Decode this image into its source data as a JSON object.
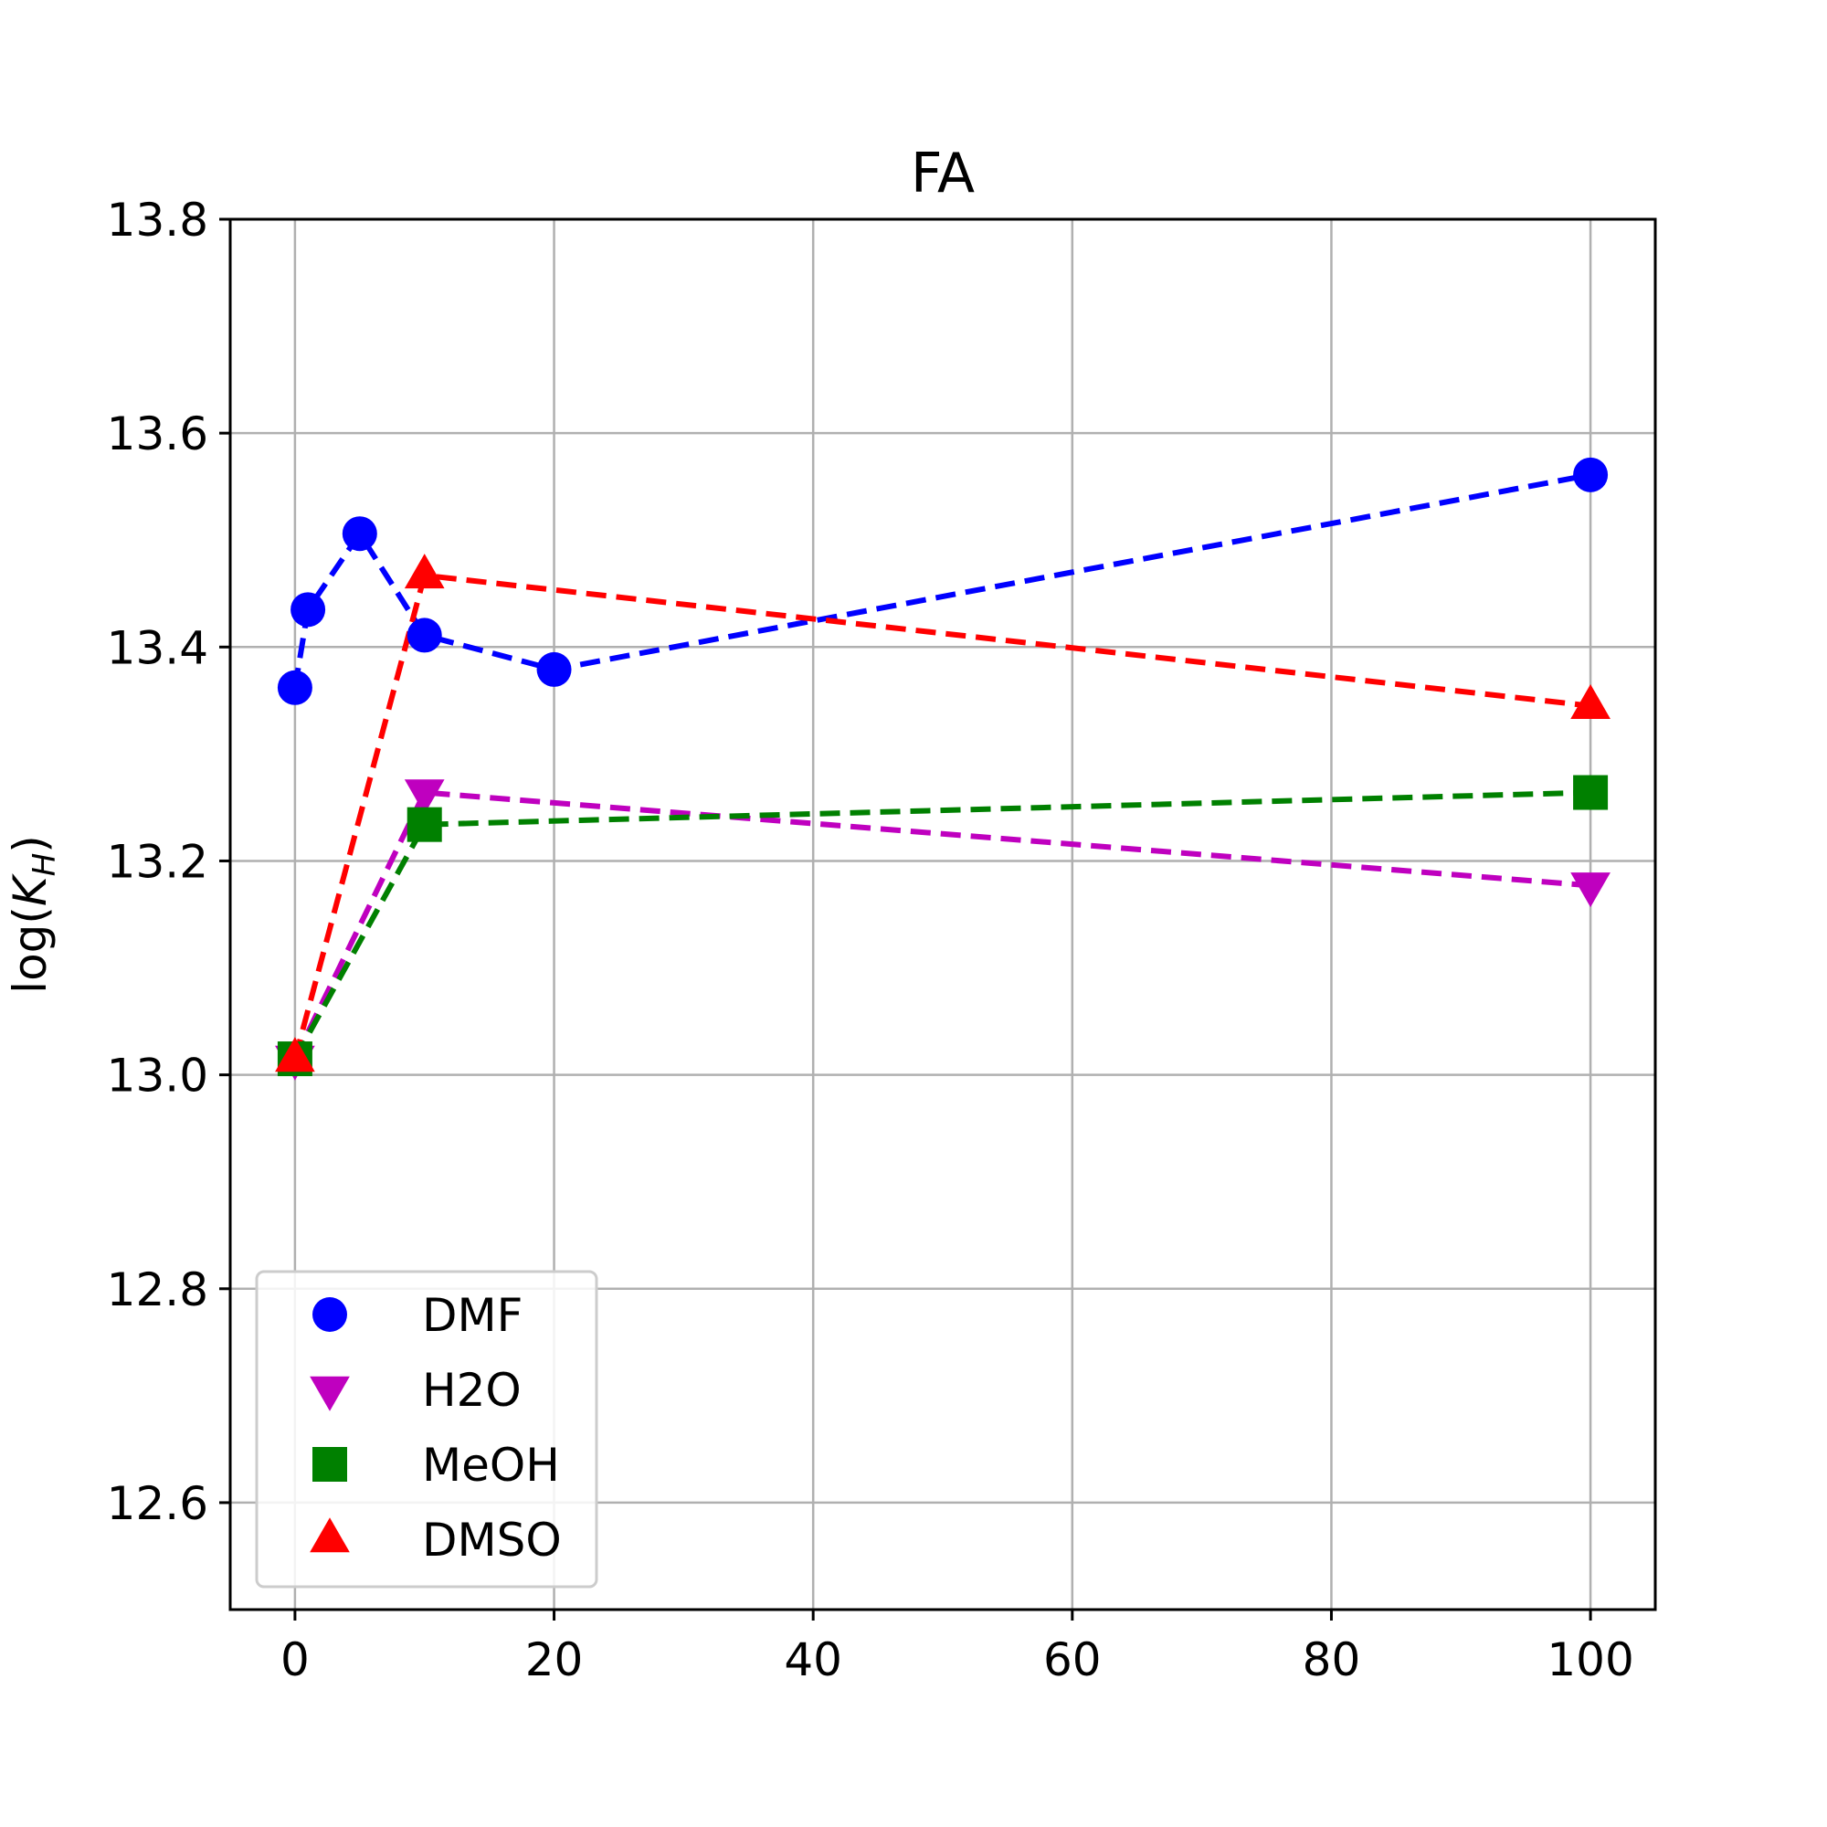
{
  "chart_data": {
    "type": "line",
    "title": "FA",
    "xlabel": "",
    "ylabel_main": "log(",
    "ylabel_var": "K",
    "ylabel_sub": "H",
    "ylabel_end": ")",
    "xlim": [
      -5,
      105
    ],
    "ylim": [
      12.5,
      13.8
    ],
    "xticks": [
      0,
      20,
      40,
      60,
      80,
      100
    ],
    "yticks": [
      12.6,
      12.8,
      13.0,
      13.2,
      13.4,
      13.6,
      13.8
    ],
    "xtick_labels": [
      "0",
      "20",
      "40",
      "60",
      "80",
      "100"
    ],
    "ytick_labels": [
      "12.6",
      "12.8",
      "13.0",
      "13.2",
      "13.4",
      "13.6",
      "13.8"
    ],
    "grid": true,
    "legend_position": "lower-left",
    "series": [
      {
        "name": "DMF",
        "color": "#0000ff",
        "marker": "circle",
        "x": [
          0,
          1,
          5,
          10,
          20,
          100
        ],
        "y": [
          13.362,
          13.435,
          13.506,
          13.411,
          13.379,
          13.561
        ]
      },
      {
        "name": "H2O",
        "color": "#bf00bf",
        "marker": "triangle-down",
        "x": [
          0,
          10,
          100
        ],
        "y": [
          13.015,
          13.264,
          13.177
        ]
      },
      {
        "name": "MeOH",
        "color": "#008000",
        "marker": "square",
        "x": [
          0,
          10,
          100
        ],
        "y": [
          13.015,
          13.234,
          13.264
        ]
      },
      {
        "name": "DMSO",
        "color": "#ff0000",
        "marker": "triangle-up",
        "x": [
          0,
          10,
          100
        ],
        "y": [
          13.015,
          13.467,
          13.345
        ]
      }
    ]
  }
}
